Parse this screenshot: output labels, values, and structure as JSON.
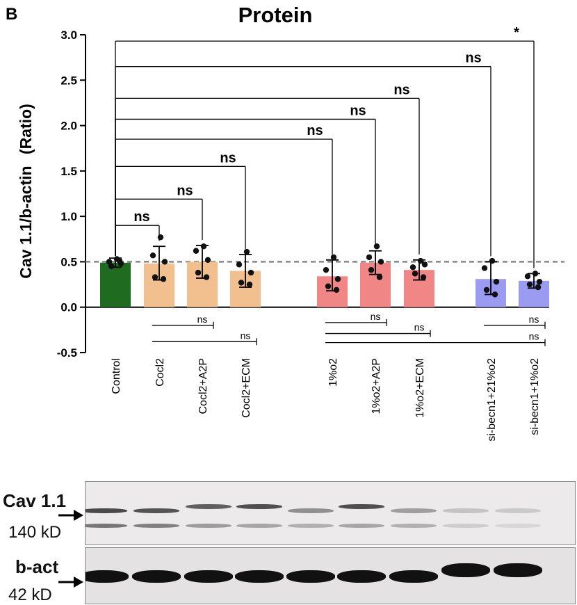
{
  "figure": {
    "panel_letter": "B",
    "title": "Protein",
    "ylabel_main": "Cav 1.1/b-actin",
    "ylabel_unit": "(Ratio)"
  },
  "chart_data": {
    "type": "bar",
    "title": "Protein",
    "ylabel": "Cav 1.1/b-actin (Ratio)",
    "ylim": [
      -0.5,
      3.0
    ],
    "yticks": [
      "3.0",
      "2.5",
      "2.0",
      "1.5",
      "1.0",
      "0.5",
      "0.0",
      "-0.5"
    ],
    "reference_line": 0.5,
    "categories": [
      "Control",
      "Cocl2",
      "Cocl2+A2P",
      "Cocl2+ECM",
      "1%o2",
      "1%o2+A2P",
      "1%o2+ECM",
      "si-becn1+21%o2",
      "si-becn1+1%o2"
    ],
    "bars": [
      {
        "category": "Control",
        "value": 0.49,
        "err_low": 0.44,
        "err_high": 0.54,
        "color": "#1f6b1f",
        "points": [
          0.53,
          0.5,
          0.48,
          0.45,
          0.51
        ]
      },
      {
        "category": "Cocl2",
        "value": 0.48,
        "err_low": 0.3,
        "err_high": 0.67,
        "color": "#f2c08e",
        "points": [
          0.77,
          0.57,
          0.5,
          0.33,
          0.31
        ]
      },
      {
        "category": "Cocl2+A2P",
        "value": 0.5,
        "err_low": 0.32,
        "err_high": 0.68,
        "color": "#f2c08e",
        "points": [
          0.67,
          0.62,
          0.52,
          0.38,
          0.33
        ]
      },
      {
        "category": "Cocl2+ECM",
        "value": 0.4,
        "err_low": 0.22,
        "err_high": 0.58,
        "color": "#f2c08e",
        "points": [
          0.61,
          0.47,
          0.38,
          0.27,
          0.25
        ]
      },
      {
        "category": "1%o2",
        "value": 0.34,
        "err_low": 0.18,
        "err_high": 0.52,
        "color": "#f08686",
        "points": [
          0.55,
          0.41,
          0.31,
          0.23,
          0.19
        ]
      },
      {
        "category": "1%o2+A2P",
        "value": 0.49,
        "err_low": 0.36,
        "err_high": 0.62,
        "color": "#f08686",
        "points": [
          0.67,
          0.55,
          0.5,
          0.41,
          0.33
        ]
      },
      {
        "category": "1%o2+ECM",
        "value": 0.41,
        "err_low": 0.3,
        "err_high": 0.52,
        "color": "#f08686",
        "points": [
          0.51,
          0.44,
          0.47,
          0.37,
          0.33
        ]
      },
      {
        "category": "si-becn1+21%o2",
        "value": 0.31,
        "err_low": 0.14,
        "err_high": 0.5,
        "color": "#9b9bf2",
        "points": [
          0.51,
          0.43,
          0.28,
          0.19,
          0.14
        ]
      },
      {
        "category": "si-becn1+1%o2",
        "value": 0.29,
        "err_low": 0.21,
        "err_high": 0.37,
        "color": "#9b9bf2",
        "points": [
          0.37,
          0.34,
          0.28,
          0.25,
          0.22
        ]
      }
    ],
    "comparisons_above": [
      {
        "from": "Control",
        "to": "Cocl2",
        "label": "ns",
        "y": 0.9
      },
      {
        "from": "Control",
        "to": "Cocl2+A2P",
        "label": "ns",
        "y": 1.19
      },
      {
        "from": "Control",
        "to": "Cocl2+ECM",
        "label": "ns",
        "y": 1.55
      },
      {
        "from": "Control",
        "to": "1%o2",
        "label": "ns",
        "y": 1.85
      },
      {
        "from": "Control",
        "to": "1%o2+A2P",
        "label": "ns",
        "y": 2.07
      },
      {
        "from": "Control",
        "to": "1%o2+ECM",
        "label": "ns",
        "y": 2.3
      },
      {
        "from": "Control",
        "to": "si-becn1+21%o2",
        "label": "ns",
        "y": 2.65
      },
      {
        "from": "Control",
        "to": "si-becn1+1%o2",
        "label": "*",
        "y": 2.93
      }
    ],
    "comparisons_below": [
      {
        "from": "Cocl2",
        "to": "Cocl2+A2P",
        "label": "ns",
        "y": -0.2
      },
      {
        "from": "Cocl2",
        "to": "Cocl2+ECM",
        "label": "ns",
        "y": -0.38
      },
      {
        "from": "1%o2",
        "to": "1%o2+A2P",
        "label": "ns",
        "y": -0.17
      },
      {
        "from": "1%o2",
        "to": "1%o2+ECM",
        "label": "ns",
        "y": -0.29
      },
      {
        "from": "1%o2",
        "to": "si-becn1+1%o2",
        "label": "ns",
        "y": -0.39
      },
      {
        "from": "si-becn1+21%o2",
        "to": "si-becn1+1%o2",
        "label": "ns",
        "y": -0.2
      }
    ]
  },
  "blots": {
    "cav": {
      "label": "Cav 1.1",
      "size": "140 kD"
    },
    "actin": {
      "label": "b-act",
      "size": "42 kD"
    }
  }
}
